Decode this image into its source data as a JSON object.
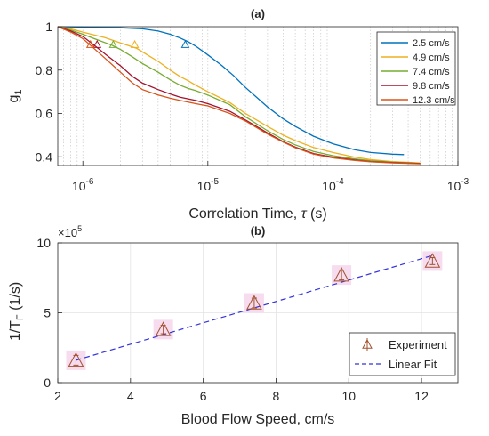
{
  "chart_data": [
    {
      "type": "line",
      "title": "(a)",
      "xlabel_prefix": "Correlation Time, ",
      "xlabel_symbol": "τ",
      "xlabel_suffix": " (s)",
      "ylabel_main": "g",
      "ylabel_sub": "1",
      "xscale": "log",
      "xlim": [
        6.3e-07,
        0.001
      ],
      "ylim": [
        0.36,
        1.0
      ],
      "xticks": [
        {
          "value": 1e-06,
          "base": "10",
          "exp": "-6"
        },
        {
          "value": 1e-05,
          "base": "10",
          "exp": "-5"
        },
        {
          "value": 0.0001,
          "base": "10",
          "exp": "-4"
        },
        {
          "value": 0.001,
          "base": "10",
          "exp": "-3"
        }
      ],
      "yticks": [
        {
          "value": 0.4,
          "label": "0.4"
        },
        {
          "value": 0.6,
          "label": "0.6"
        },
        {
          "value": 0.8,
          "label": "0.8"
        },
        {
          "value": 1.0,
          "label": "1"
        }
      ],
      "grid": "x-minor-dotted",
      "legend_position": "top-right",
      "series": [
        {
          "name": "2.5 cm/s",
          "color": "#0072BD",
          "points": [
            [
              6.3e-07,
              1.0
            ],
            [
              1e-06,
              0.998
            ],
            [
              2e-06,
              0.995
            ],
            [
              3e-06,
              0.99
            ],
            [
              4e-06,
              0.98
            ],
            [
              5e-06,
              0.965
            ],
            [
              6e-06,
              0.948
            ],
            [
              7e-06,
              0.93
            ],
            [
              8e-06,
              0.91
            ],
            [
              1e-05,
              0.87
            ],
            [
              1.3e-05,
              0.82
            ],
            [
              1.6e-05,
              0.775
            ],
            [
              2e-05,
              0.72
            ],
            [
              2.5e-05,
              0.67
            ],
            [
              3e-05,
              0.63
            ],
            [
              4e-05,
              0.575
            ],
            [
              5e-05,
              0.54
            ],
            [
              7e-05,
              0.495
            ],
            [
              0.0001,
              0.46
            ],
            [
              0.00015,
              0.432
            ],
            [
              0.0002,
              0.42
            ],
            [
              0.0003,
              0.412
            ],
            [
              0.00037,
              0.41
            ]
          ],
          "marker": {
            "x": 6.6e-06,
            "y": 0.918
          }
        },
        {
          "name": "4.9 cm/s",
          "color": "#EDB120",
          "points": [
            [
              6.3e-07,
              1.0
            ],
            [
              8e-07,
              0.99
            ],
            [
              1e-06,
              0.975
            ],
            [
              1.5e-06,
              0.95
            ],
            [
              2e-06,
              0.925
            ],
            [
              2.7e-06,
              0.9
            ],
            [
              3.5e-06,
              0.86
            ],
            [
              4e-06,
              0.84
            ],
            [
              5e-06,
              0.8
            ],
            [
              6e-06,
              0.77
            ],
            [
              7e-06,
              0.75
            ],
            [
              8e-06,
              0.73
            ],
            [
              1e-05,
              0.7
            ],
            [
              1.5e-05,
              0.65
            ],
            [
              2e-05,
              0.6
            ],
            [
              3e-05,
              0.54
            ],
            [
              4e-05,
              0.5
            ],
            [
              5e-05,
              0.475
            ],
            [
              7e-05,
              0.443
            ],
            [
              0.0001,
              0.42
            ],
            [
              0.00015,
              0.398
            ],
            [
              0.0002,
              0.387
            ],
            [
              0.0003,
              0.378
            ],
            [
              0.0005,
              0.372
            ]
          ],
          "marker": {
            "x": 2.6e-06,
            "y": 0.918
          }
        },
        {
          "name": "7.4 cm/s",
          "color": "#77AC30",
          "points": [
            [
              6.3e-07,
              1.0
            ],
            [
              8e-07,
              0.985
            ],
            [
              1e-06,
              0.965
            ],
            [
              1.3e-06,
              0.94
            ],
            [
              1.7e-06,
              0.915
            ],
            [
              2e-06,
              0.895
            ],
            [
              2.5e-06,
              0.86
            ],
            [
              3e-06,
              0.83
            ],
            [
              4e-06,
              0.79
            ],
            [
              5e-06,
              0.755
            ],
            [
              6e-06,
              0.73
            ],
            [
              7e-06,
              0.715
            ],
            [
              8e-06,
              0.705
            ],
            [
              1e-05,
              0.685
            ],
            [
              1.5e-05,
              0.64
            ],
            [
              2e-05,
              0.585
            ],
            [
              3e-05,
              0.52
            ],
            [
              4e-05,
              0.48
            ],
            [
              5e-05,
              0.455
            ],
            [
              7e-05,
              0.425
            ],
            [
              0.0001,
              0.405
            ],
            [
              0.00015,
              0.39
            ],
            [
              0.0002,
              0.382
            ],
            [
              0.0003,
              0.375
            ],
            [
              0.0005,
              0.37
            ]
          ],
          "marker": {
            "x": 1.75e-06,
            "y": 0.918
          }
        },
        {
          "name": "9.8 cm/s",
          "color": "#A2142F",
          "points": [
            [
              6.3e-07,
              1.0
            ],
            [
              8e-07,
              0.98
            ],
            [
              1e-06,
              0.955
            ],
            [
              1.2e-06,
              0.92
            ],
            [
              1.5e-06,
              0.875
            ],
            [
              2e-06,
              0.82
            ],
            [
              2.5e-06,
              0.77
            ],
            [
              3e-06,
              0.74
            ],
            [
              4e-06,
              0.71
            ],
            [
              5e-06,
              0.69
            ],
            [
              6e-06,
              0.675
            ],
            [
              8e-06,
              0.66
            ],
            [
              1e-05,
              0.645
            ],
            [
              1.5e-05,
              0.61
            ],
            [
              2e-05,
              0.57
            ],
            [
              3e-05,
              0.51
            ],
            [
              4e-05,
              0.47
            ],
            [
              5e-05,
              0.445
            ],
            [
              7e-05,
              0.415
            ],
            [
              0.0001,
              0.398
            ],
            [
              0.00015,
              0.385
            ],
            [
              0.0002,
              0.378
            ],
            [
              0.0003,
              0.373
            ],
            [
              0.0005,
              0.369
            ]
          ],
          "marker": {
            "x": 1.3e-06,
            "y": 0.918
          }
        },
        {
          "name": "12.3 cm/s",
          "color": "#D95319",
          "points": [
            [
              6.3e-07,
              1.0
            ],
            [
              8e-07,
              0.975
            ],
            [
              1e-06,
              0.945
            ],
            [
              1.2e-06,
              0.905
            ],
            [
              1.5e-06,
              0.855
            ],
            [
              2e-06,
              0.79
            ],
            [
              2.5e-06,
              0.74
            ],
            [
              3e-06,
              0.71
            ],
            [
              4e-06,
              0.685
            ],
            [
              5e-06,
              0.67
            ],
            [
              6e-06,
              0.66
            ],
            [
              8e-06,
              0.645
            ],
            [
              1e-05,
              0.635
            ],
            [
              1.5e-05,
              0.6
            ],
            [
              2e-05,
              0.565
            ],
            [
              3e-05,
              0.505
            ],
            [
              4e-05,
              0.468
            ],
            [
              5e-05,
              0.442
            ],
            [
              7e-05,
              0.412
            ],
            [
              0.0001,
              0.395
            ],
            [
              0.00015,
              0.383
            ],
            [
              0.0002,
              0.377
            ],
            [
              0.0003,
              0.372
            ],
            [
              0.0005,
              0.368
            ]
          ],
          "marker": {
            "x": 1.15e-06,
            "y": 0.918
          }
        }
      ]
    },
    {
      "type": "scatter",
      "title": "(b)",
      "xlabel": "Blood Flow Speed, cm/s",
      "ylabel_main": "1/T",
      "ylabel_sub": "F",
      "ylabel_suffix": " (1/s)",
      "exponent_label": {
        "base": "×10",
        "exp": "5"
      },
      "xlim": [
        2,
        13
      ],
      "ylim": [
        0,
        10
      ],
      "xticks": [
        2,
        4,
        6,
        8,
        10,
        12
      ],
      "yticks": [
        0,
        5,
        10
      ],
      "grid": true,
      "legend_position": "bottom-right",
      "series": [
        {
          "name": "Experiment",
          "color": "#A0522D",
          "marker": "triangle",
          "x": [
            2.5,
            4.9,
            7.4,
            9.8,
            12.3
          ],
          "y": [
            1.6,
            3.8,
            5.7,
            7.7,
            8.7
          ],
          "err": [
            0.35,
            0.3,
            0.35,
            0.35,
            0.25
          ]
        },
        {
          "name": "Linear Fit",
          "color": "#3333DD",
          "style": "dashed",
          "x": [
            2.5,
            12.3
          ],
          "y": [
            1.6,
            9.1
          ]
        }
      ]
    }
  ]
}
